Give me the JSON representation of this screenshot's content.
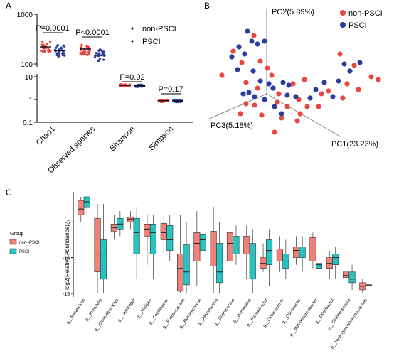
{
  "colors": {
    "nonpsci": "#e8463f",
    "psci": "#2a3d9c",
    "box_nonpsci": "#f08178",
    "box_psci": "#26c3c3",
    "axis": "#000000"
  },
  "panel_labels": {
    "a": "A",
    "b": "B",
    "c": "C"
  },
  "chart_data": [
    {
      "type": "scatter",
      "panel": "A",
      "y_scale": "log",
      "y_top_ticks": [
        "1000",
        "100"
      ],
      "y_bottom_ticks": [
        "10",
        "1",
        "0.1"
      ],
      "categories": [
        "Chao1",
        "Observed species",
        "Shannon",
        "Simpson"
      ],
      "series": [
        {
          "name": "non-PSCI",
          "means": [
            220,
            200,
            4.2,
            0.88
          ]
        },
        {
          "name": "PSCI",
          "means": [
            185,
            150,
            4.0,
            0.87
          ]
        }
      ],
      "p_values": [
        "P=0.0001",
        "P<0.0001",
        "P=0.02",
        "P=0.17"
      ],
      "legend": [
        "non-PSCI",
        "PSCI"
      ]
    },
    {
      "type": "scatter",
      "panel": "B",
      "axis_labels": [
        "PC2(5.89%)",
        "PC3(5.18%)",
        "PC1(23.23%)"
      ],
      "legend": [
        "non-PSCI",
        "PSCI"
      ]
    },
    {
      "type": "box",
      "panel": "C",
      "ylabel": "log2(Relative Abundance)",
      "y_ticks": [
        -5,
        -10,
        -15
      ],
      "ylim": [
        -15.5,
        -1
      ],
      "legend_title": "Group",
      "legend": [
        "non--PSCI",
        "PSCI"
      ],
      "categories": [
        "g__Bacteroides",
        "g__Prevotella",
        "g__Clostridium XIVa",
        "g__Gemmiger",
        "g__Alistipes",
        "g__Oscillibacter",
        "g__Fusobacterium",
        "g__Ruminococcus",
        "g__Akkermansia",
        "g__Coprococcus",
        "g__Barnesiella",
        "g__Flavonifractor",
        "g__Clostridium IV",
        "g__Odoribacter",
        "g__Methanobrevibacter",
        "g__Odoribacter",
        "g__Christensenella",
        "g__Hydrogenoanaerobacterium"
      ],
      "series": [
        {
          "name": "non--PSCI",
          "boxes": [
            [
              -5,
              -4,
              -3.2,
              -2,
              -1.5
            ],
            [
              -15,
              -12,
              -9.5,
              -4.5,
              -2.5
            ],
            [
              -7.5,
              -6.3,
              -5.8,
              -5.3,
              -4
            ],
            [
              -6,
              -5,
              -4.6,
              -4.3,
              -3.5
            ],
            [
              -11,
              -7,
              -6,
              -5.3,
              -4
            ],
            [
              -10,
              -7.5,
              -6.5,
              -5.2,
              -4
            ],
            [
              -15,
              -14.7,
              -11.5,
              -9.5,
              -4
            ],
            [
              -14,
              -10.5,
              -8,
              -6.5,
              -3.5
            ],
            [
              -15,
              -11.2,
              -8.5,
              -6.3,
              -3
            ],
            [
              -14,
              -10.5,
              -8,
              -6.5,
              -3.5
            ],
            [
              -13,
              -9.5,
              -8.5,
              -7,
              -5.5
            ],
            [
              -12,
              -11.5,
              -10.8,
              -10,
              -8
            ],
            [
              -12,
              -10.5,
              -9.5,
              -8.8,
              -7
            ],
            [
              -11,
              -10,
              -9,
              -8.5,
              -7
            ],
            [
              -11.5,
              -10.5,
              -8.5,
              -7.2,
              -6.5
            ],
            [
              -13,
              -11.5,
              -10.8,
              -10,
              -9
            ],
            [
              -13.5,
              -12.8,
              -12.5,
              -12,
              -11
            ],
            [
              -15,
              -14.5,
              -14,
              -13.5,
              -13
            ]
          ]
        },
        {
          "name": "PSCI",
          "boxes": [
            [
              -4,
              -3,
              -2.2,
              -1.5,
              -1.2
            ],
            [
              -15,
              -13,
              -9.5,
              -7.5,
              -2.5
            ],
            [
              -7,
              -6,
              -5.3,
              -4.5,
              -3.5
            ],
            [
              -13,
              -9.5,
              -6.5,
              -4.5,
              -3
            ],
            [
              -13,
              -9.5,
              -6.5,
              -5.3,
              -4
            ],
            [
              -10.5,
              -9,
              -7.5,
              -5.5,
              -4
            ],
            [
              -15,
              -13.8,
              -12,
              -8.2,
              -5
            ],
            [
              -11,
              -9,
              -7.5,
              -6.8,
              -5
            ],
            [
              -15,
              -13.5,
              -12,
              -8,
              -5
            ],
            [
              -11,
              -9.5,
              -8.5,
              -7,
              -5.5
            ],
            [
              -15,
              -13,
              -9.5,
              -8,
              -6
            ],
            [
              -14,
              -11,
              -9,
              -7.5,
              -6
            ],
            [
              -13,
              -11.5,
              -10.5,
              -9.5,
              -7.5
            ],
            [
              -12,
              -10,
              -9.5,
              -8.5,
              -7
            ],
            [
              -11.8,
              -11.5,
              -11,
              -10.8,
              -10.5
            ],
            [
              -13,
              -11,
              -10,
              -9.5,
              -8.5
            ],
            [
              -14.5,
              -13.5,
              -13,
              -12,
              -11
            ],
            [
              -13.8,
              -13.8,
              -13.8,
              -13.8,
              -13.8
            ]
          ]
        }
      ]
    }
  ]
}
